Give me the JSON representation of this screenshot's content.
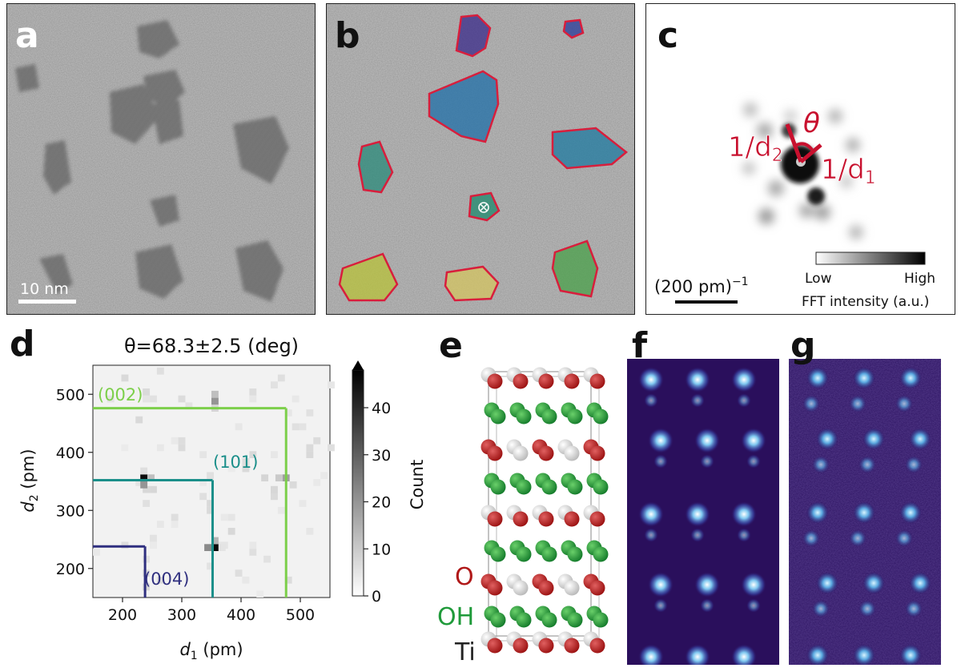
{
  "figure": {
    "panels": {
      "a": {
        "label": "a",
        "scale_bar": "10 nm"
      },
      "b": {
        "label": "b"
      },
      "c": {
        "label": "c",
        "theta": "θ",
        "d2_label": "1/d",
        "d2_sub": "2",
        "d1_label": "1/d",
        "d1_sub": "1",
        "scale_text": "(200 pm)",
        "scale_sup": "−1",
        "cb_low": "Low",
        "cb_high": "High",
        "cb_title": "FFT intensity (a.u.)"
      },
      "d": {
        "label": "d",
        "title": "θ=68.3±2.5 (deg)",
        "xlabel_var": "d",
        "xlabel_sub": "1",
        "xlabel_unit": " (pm)",
        "ylabel_var": "d",
        "ylabel_sub": "2",
        "ylabel_unit": " (pm)",
        "cb_label": "Count",
        "annot_002": "(002)",
        "annot_101": "(101)",
        "annot_004": "(004)"
      },
      "e": {
        "label": "e",
        "legend_O": "O",
        "legend_OH": "OH",
        "legend_Ti": "Ti"
      },
      "f": {
        "label": "f"
      },
      "g": {
        "label": "g"
      }
    },
    "colors": {
      "red": "#c8102e",
      "green_002": "#7ccf4a",
      "teal_101": "#1b8f8a",
      "navy_004": "#2f2f7f",
      "atom_O": "#b01818",
      "atom_OH": "#1f9a3a",
      "atom_Ti": "#e8e8e8"
    }
  },
  "chart_data": {
    "type": "heatmap",
    "title": "θ=68.3±2.5 (deg)",
    "xlabel": "d1 (pm)",
    "ylabel": "d2 (pm)",
    "xlim": [
      150,
      550
    ],
    "ylim": [
      150,
      550
    ],
    "xticks": [
      200,
      300,
      400,
      500
    ],
    "yticks": [
      200,
      300,
      400,
      500
    ],
    "colorbar": {
      "label": "Count",
      "range": [
        0,
        48
      ],
      "ticks": [
        0,
        10,
        20,
        30,
        40
      ]
    },
    "bin_size": 12,
    "cells": [
      {
        "x": 236,
        "y": 356,
        "count": 46
      },
      {
        "x": 236,
        "y": 344,
        "count": 20
      },
      {
        "x": 248,
        "y": 356,
        "count": 12
      },
      {
        "x": 356,
        "y": 236,
        "count": 46
      },
      {
        "x": 344,
        "y": 236,
        "count": 22
      },
      {
        "x": 356,
        "y": 248,
        "count": 14
      },
      {
        "x": 356,
        "y": 488,
        "count": 20
      },
      {
        "x": 356,
        "y": 500,
        "count": 12
      },
      {
        "x": 356,
        "y": 476,
        "count": 8
      },
      {
        "x": 476,
        "y": 356,
        "count": 18
      },
      {
        "x": 464,
        "y": 356,
        "count": 10
      },
      {
        "x": 440,
        "y": 356,
        "count": 8
      },
      {
        "x": 488,
        "y": 344,
        "count": 7
      },
      {
        "x": 236,
        "y": 368,
        "count": 6
      },
      {
        "x": 368,
        "y": 236,
        "count": 5
      }
    ],
    "reference_lines": [
      {
        "name": "(002)",
        "color": "#7ccf4a",
        "x": 476,
        "y": 476
      },
      {
        "name": "(101)",
        "color": "#1b8f8a",
        "x": 352,
        "y": 352
      },
      {
        "name": "(004)",
        "color": "#2f2f7f",
        "x": 238,
        "y": 238
      }
    ]
  }
}
